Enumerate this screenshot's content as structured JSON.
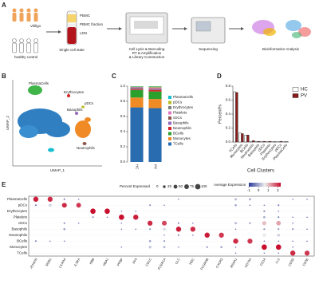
{
  "panel_a": {
    "label": "A",
    "group_top": "Vitiligo",
    "group_bottom": "healthy control",
    "single_cell": "Single cell state",
    "tube_labels": [
      "PBMC",
      "PBMC fraction",
      "LDN"
    ],
    "library": [
      "Cell Lysis & Barcoding",
      "RT & Amplification",
      "& Library Construction"
    ],
    "sequencing": "Sequencing",
    "analysis": "Bioinformatics Analysis"
  },
  "panel_b": {
    "label": "B",
    "xlabel": "UMAP_1",
    "ylabel": "UMAP_2",
    "clusters": [
      "PlasmaCells",
      "Erythrocytes",
      "Basophils",
      "pDCs",
      "Neutrophils"
    ]
  },
  "chart_data": [
    {
      "panel": "C",
      "type": "stacked_bar",
      "categories": [
        "HC",
        "PV"
      ],
      "series": [
        {
          "name": "TCells",
          "color": "#2a6cb0",
          "values": [
            0.72,
            0.71
          ]
        },
        {
          "name": "Monocytes",
          "color": "#f08a24",
          "values": [
            0.13,
            0.12
          ]
        },
        {
          "name": "BCells",
          "color": "#2ca02c",
          "values": [
            0.1,
            0.1
          ]
        },
        {
          "name": "Neutrophils",
          "color": "#d62728",
          "values": [
            0.01,
            0.02
          ]
        },
        {
          "name": "Basophils",
          "color": "#9467bd",
          "values": [
            0.01,
            0.01
          ]
        },
        {
          "name": "cDCs",
          "color": "#8c564b",
          "values": [
            0.01,
            0.01
          ]
        },
        {
          "name": "Platelets",
          "color": "#e377c2",
          "values": [
            0.005,
            0.01
          ]
        },
        {
          "name": "Erythrocytes",
          "color": "#7f7f7f",
          "values": [
            0.005,
            0.005
          ]
        },
        {
          "name": "pDCs",
          "color": "#bcbd22",
          "values": [
            0.005,
            0.01
          ]
        },
        {
          "name": "PlasmaCells",
          "color": "#17becf",
          "values": [
            0.005,
            0.005
          ]
        }
      ],
      "ylim": [
        0,
        1
      ],
      "yticks": [
        {
          "value": 0,
          "label": "0.0"
        },
        0.2,
        0.4,
        0.6,
        0.8,
        {
          "value": 1,
          "label": "1.0"
        }
      ]
    },
    {
      "panel": "D",
      "type": "grouped_bar",
      "ylabel": "Percent%",
      "xlabel": "Cell Clusters",
      "categories": [
        "TCells",
        "Monocytes",
        "BCells",
        "Neutrophils",
        "Basophils",
        "cDCs",
        "Platelets",
        "Erythrocytes",
        "pDCs",
        "PlasmaCells"
      ],
      "series": [
        {
          "name": "HC",
          "color": "#ffffff",
          "values": [
            0.72,
            0.13,
            0.1,
            0.01,
            0.01,
            0.01,
            0.005,
            0.005,
            0.005,
            0.005
          ]
        },
        {
          "name": "PV",
          "color": "#8b1c1c",
          "values": [
            0.71,
            0.12,
            0.1,
            0.02,
            0.01,
            0.01,
            0.01,
            0.005,
            0.01,
            0.005
          ]
        }
      ],
      "ylim": [
        0,
        0.8
      ],
      "yticks": [
        {
          "value": 0,
          "label": "0.0"
        },
        0.2,
        0.4,
        0.6,
        0.8
      ]
    },
    {
      "panel": "E",
      "type": "dotplot",
      "categories": [
        "PlasmaCells",
        "pDCs",
        "Erythrocytes",
        "Platelets",
        "cDCs",
        "Basophils",
        "Neutrophils",
        "BCells",
        "Monocytes",
        "TCells"
      ],
      "genes": [
        "JCHAIN",
        "MZB1",
        "LILRA4",
        "IL3RA",
        "HBB",
        "HBA1",
        "PPBP",
        "PF4",
        "CD1C",
        "FCER1A",
        "CLC",
        "HDC",
        "FCGR3B",
        "CXCR2",
        "MS4A1",
        "CD79A",
        "CD14",
        "LYZ",
        "CD3D",
        "CD3E"
      ],
      "pct": [
        [
          90,
          85,
          10,
          5,
          0,
          0,
          0,
          0,
          0,
          0,
          5,
          0,
          0,
          0,
          20,
          15,
          0,
          0,
          5,
          5
        ],
        [
          10,
          30,
          80,
          75,
          0,
          0,
          0,
          0,
          10,
          5,
          0,
          0,
          0,
          0,
          15,
          5,
          5,
          10,
          0,
          0
        ],
        [
          0,
          0,
          0,
          0,
          95,
          95,
          5,
          5,
          0,
          0,
          0,
          0,
          0,
          0,
          0,
          0,
          10,
          5,
          0,
          0
        ],
        [
          0,
          0,
          0,
          0,
          10,
          5,
          95,
          90,
          0,
          0,
          0,
          0,
          0,
          0,
          0,
          0,
          15,
          10,
          5,
          5
        ],
        [
          0,
          0,
          10,
          5,
          0,
          0,
          5,
          0,
          85,
          80,
          10,
          5,
          0,
          0,
          20,
          10,
          60,
          70,
          5,
          0
        ],
        [
          0,
          0,
          15,
          0,
          0,
          0,
          5,
          5,
          10,
          30,
          90,
          85,
          0,
          0,
          5,
          0,
          10,
          10,
          10,
          5
        ],
        [
          0,
          0,
          0,
          0,
          0,
          0,
          0,
          0,
          0,
          5,
          10,
          5,
          90,
          85,
          0,
          0,
          40,
          30,
          0,
          0
        ],
        [
          10,
          5,
          5,
          0,
          0,
          0,
          0,
          0,
          15,
          10,
          0,
          0,
          0,
          0,
          90,
          85,
          5,
          5,
          5,
          5
        ],
        [
          0,
          0,
          0,
          0,
          0,
          0,
          5,
          0,
          25,
          20,
          5,
          0,
          10,
          15,
          5,
          0,
          95,
          95,
          5,
          0
        ],
        [
          0,
          0,
          0,
          0,
          0,
          0,
          0,
          0,
          0,
          0,
          0,
          0,
          0,
          0,
          5,
          0,
          5,
          5,
          90,
          85
        ]
      ],
      "expr": [
        [
          2.2,
          2.1,
          -0.3,
          -0.5,
          -0.8,
          -0.8,
          -0.8,
          -0.8,
          -0.8,
          -0.8,
          -0.5,
          -0.8,
          -0.8,
          -0.8,
          0.2,
          0,
          -0.8,
          -0.8,
          -0.5,
          -0.5
        ],
        [
          -0.3,
          0.4,
          2.1,
          2,
          -0.8,
          -0.8,
          -0.8,
          -0.8,
          -0.2,
          -0.5,
          -0.8,
          -0.8,
          -0.8,
          -0.8,
          0,
          -0.5,
          -0.5,
          -0.3,
          -0.8,
          -0.8
        ],
        [
          -0.8,
          -0.8,
          -0.8,
          -0.8,
          2.3,
          2.3,
          -0.4,
          -0.4,
          -0.8,
          -0.8,
          -0.8,
          -0.8,
          -0.8,
          -0.8,
          -0.8,
          -0.8,
          -0.3,
          -0.5,
          -0.8,
          -0.8
        ],
        [
          -0.8,
          -0.8,
          -0.8,
          -0.8,
          -0.2,
          -0.5,
          2.3,
          2.2,
          -0.8,
          -0.8,
          -0.8,
          -0.8,
          -0.8,
          -0.8,
          -0.8,
          -0.8,
          0,
          -0.3,
          -0.5,
          -0.5
        ],
        [
          -0.8,
          -0.8,
          -0.2,
          -0.5,
          -0.8,
          -0.8,
          -0.5,
          -0.8,
          2.1,
          1.9,
          -0.2,
          -0.5,
          -0.8,
          -0.8,
          0.2,
          -0.2,
          1,
          1.2,
          -0.5,
          -0.8
        ],
        [
          -0.8,
          -0.8,
          0,
          -0.8,
          -0.8,
          -0.8,
          -0.5,
          -0.5,
          -0.2,
          0.5,
          2.2,
          2.1,
          -0.8,
          -0.8,
          -0.5,
          -0.8,
          -0.2,
          -0.2,
          -0.2,
          -0.5
        ],
        [
          -0.8,
          -0.8,
          -0.8,
          -0.8,
          -0.8,
          -0.8,
          -0.8,
          -0.8,
          -0.8,
          -0.5,
          -0.2,
          -0.5,
          2.2,
          2,
          -0.8,
          -0.8,
          0.6,
          0.4,
          -0.8,
          -0.8
        ],
        [
          -0.2,
          -0.5,
          -0.5,
          -0.8,
          -0.8,
          -0.8,
          -0.8,
          -0.8,
          0,
          -0.2,
          -0.8,
          -0.8,
          -0.8,
          -0.8,
          2.1,
          2,
          -0.5,
          -0.5,
          -0.5,
          -0.5
        ],
        [
          -0.8,
          -0.8,
          -0.8,
          -0.8,
          -0.8,
          -0.8,
          -0.5,
          -0.8,
          0.3,
          0.2,
          -0.5,
          -0.8,
          -0.2,
          0,
          -0.5,
          -0.8,
          2.3,
          2.3,
          -0.5,
          -0.8
        ],
        [
          -0.8,
          -0.8,
          -0.8,
          -0.8,
          -0.8,
          -0.8,
          -0.8,
          -0.8,
          -0.8,
          -0.8,
          -0.8,
          -0.8,
          -0.8,
          -0.8,
          -0.5,
          -0.8,
          -0.5,
          -0.5,
          2.1,
          2
        ]
      ],
      "size_label": "Percent Expressed",
      "size_ticks": [
        0,
        25,
        50,
        75,
        100
      ],
      "color_label": "Average Expression",
      "color_ticks": [
        -1,
        0,
        1,
        2
      ],
      "clim": [
        -1,
        2.3
      ],
      "color_low": "#2b3a99",
      "color_mid": "#eeeeee",
      "color_high": "#c8102e"
    }
  ]
}
